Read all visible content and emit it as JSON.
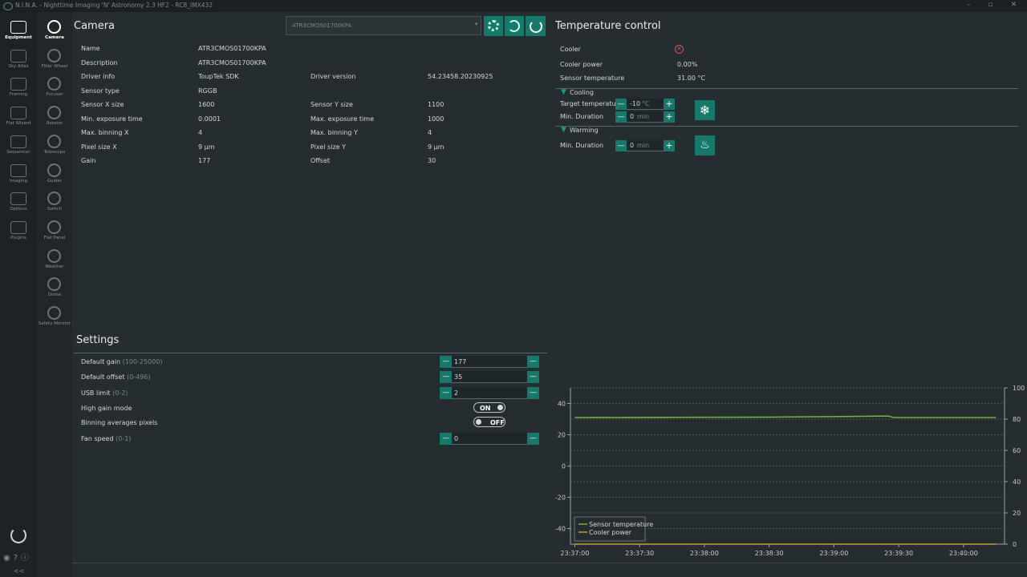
{
  "title_bar": {
    "title": "N.I.N.A. - Nighttime Imaging 'N' Astronomy 2.3 HF2  -  RC8_IMX432"
  },
  "sidebar": [
    "Equipment",
    "Sky Atlas",
    "Framing",
    "Flat Wizard",
    "Sequencer",
    "Imaging",
    "Options",
    "Plugins"
  ],
  "sidebar_collapse": "<<",
  "equipment_menu": [
    "Camera",
    "Filter Wheel",
    "Focuser",
    "Rotator",
    "Telescope",
    "Guider",
    "Switch",
    "Flat Panel",
    "Weather",
    "Dome",
    "Safety Monitor"
  ],
  "camera": {
    "title": "Camera",
    "device": "ATR3CMOS01700KPA",
    "info": [
      [
        "Name",
        "ATR3CMOS01700KPA"
      ],
      [
        "Description",
        "ATR3CMOS01700KPA"
      ],
      [
        "Driver info",
        "ToupTek SDK",
        "Driver version",
        "54.23458.20230925"
      ],
      [
        "Sensor type",
        "RGGB"
      ],
      [
        "Sensor X size",
        "1600",
        "Sensor Y size",
        "1100"
      ],
      [
        "Min. exposure time",
        "0.0001",
        "Max. exposure time",
        "1000"
      ],
      [
        "Max. binning X",
        "4",
        "Max. binning Y",
        "4"
      ],
      [
        "Pixel size X",
        "9 µm",
        "Pixel size Y",
        "9 µm"
      ],
      [
        "Gain",
        "177",
        "Offset",
        "30"
      ]
    ]
  },
  "settings": {
    "title": "Settings",
    "rows": [
      {
        "label": "Default gain",
        "range": "(100-25000)",
        "value": "177"
      },
      {
        "label": "Default offset",
        "range": "(0-496)",
        "value": "35"
      },
      {
        "label": "USB limit",
        "range": "(0-2)",
        "value": "2"
      },
      {
        "label": "High gain mode",
        "state": "ON"
      },
      {
        "label": "Binning averages pixels",
        "state": "OFF"
      },
      {
        "label": "Fan speed",
        "range": "(0-1)",
        "value": "0"
      }
    ]
  },
  "temperature": {
    "title": "Temperature control",
    "status": [
      {
        "label": "Cooler"
      },
      {
        "label": "Cooler power",
        "value": "0.00%"
      },
      {
        "label": "Sensor temperature",
        "value": "31.00 °C"
      }
    ],
    "cooling": {
      "title": "Cooling",
      "target_label": "Target temperature",
      "target": "-10",
      "target_unit": "°C",
      "duration_label": "Min. Duration",
      "duration": "0",
      "duration_unit": "min"
    },
    "warming": {
      "title": "Warming",
      "duration_label": "Min. Duration",
      "duration": "0",
      "duration_unit": "min"
    }
  },
  "chart": {
    "type": "line",
    "x": [
      "23:37:00",
      "23:37:30",
      "23:38:00",
      "23:38:30",
      "23:39:00",
      "23:39:25",
      "23:39:28",
      "23:40:00",
      "23:40:15"
    ],
    "xlim": [
      "23:36:58",
      "23:40:19"
    ],
    "xticks": [
      "23:37:00",
      "23:37:30",
      "23:38:00",
      "23:38:30",
      "23:39:00",
      "23:39:30",
      "23:40:00"
    ],
    "ylim": [
      -50,
      50
    ],
    "yticks": [
      -40,
      -20,
      0,
      20,
      40
    ],
    "y2lim": [
      0,
      100
    ],
    "y2ticks": [
      0,
      20,
      40,
      60,
      80,
      100
    ],
    "legend": "lower left",
    "series": [
      {
        "name": "Sensor temperature",
        "color": "#76b83e",
        "values": [
          31.0,
          31.1,
          31.2,
          31.3,
          31.6,
          32.0,
          31.0,
          31.0,
          31.0
        ]
      },
      {
        "name": "Cooler power",
        "color": "#c9a227",
        "axis": "y2",
        "values": [
          0,
          0,
          0,
          0,
          0,
          0,
          0,
          0,
          0
        ]
      }
    ]
  }
}
